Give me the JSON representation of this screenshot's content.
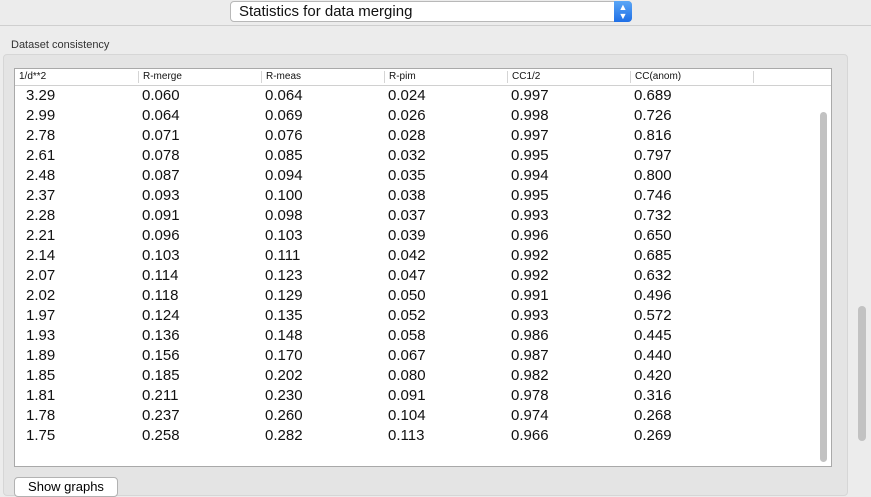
{
  "toolbar": {
    "selected_view": "Statistics for data merging"
  },
  "group": {
    "title": "Dataset consistency"
  },
  "table": {
    "columns": [
      "1/d**2",
      "R-merge",
      "R-meas",
      "R-pim",
      "CC1/2",
      "CC(anom)"
    ],
    "rows": [
      [
        "3.29",
        "0.060",
        "0.064",
        "0.024",
        "0.997",
        "0.689"
      ],
      [
        "2.99",
        "0.064",
        "0.069",
        "0.026",
        "0.998",
        "0.726"
      ],
      [
        "2.78",
        "0.071",
        "0.076",
        "0.028",
        "0.997",
        "0.816"
      ],
      [
        "2.61",
        "0.078",
        "0.085",
        "0.032",
        "0.995",
        "0.797"
      ],
      [
        "2.48",
        "0.087",
        "0.094",
        "0.035",
        "0.994",
        "0.800"
      ],
      [
        "2.37",
        "0.093",
        "0.100",
        "0.038",
        "0.995",
        "0.746"
      ],
      [
        "2.28",
        "0.091",
        "0.098",
        "0.037",
        "0.993",
        "0.732"
      ],
      [
        "2.21",
        "0.096",
        "0.103",
        "0.039",
        "0.996",
        "0.650"
      ],
      [
        "2.14",
        "0.103",
        "0.111",
        "0.042",
        "0.992",
        "0.685"
      ],
      [
        "2.07",
        "0.114",
        "0.123",
        "0.047",
        "0.992",
        "0.632"
      ],
      [
        "2.02",
        "0.118",
        "0.129",
        "0.050",
        "0.991",
        "0.496"
      ],
      [
        "1.97",
        "0.124",
        "0.135",
        "0.052",
        "0.993",
        "0.572"
      ],
      [
        "1.93",
        "0.136",
        "0.148",
        "0.058",
        "0.986",
        "0.445"
      ],
      [
        "1.89",
        "0.156",
        "0.170",
        "0.067",
        "0.987",
        "0.440"
      ],
      [
        "1.85",
        "0.185",
        "0.202",
        "0.080",
        "0.982",
        "0.420"
      ],
      [
        "1.81",
        "0.211",
        "0.230",
        "0.091",
        "0.978",
        "0.316"
      ],
      [
        "1.78",
        "0.237",
        "0.260",
        "0.104",
        "0.974",
        "0.268"
      ],
      [
        "1.75",
        "0.258",
        "0.282",
        "0.113",
        "0.966",
        "0.269"
      ]
    ]
  },
  "buttons": {
    "show_graphs": "Show graphs"
  }
}
